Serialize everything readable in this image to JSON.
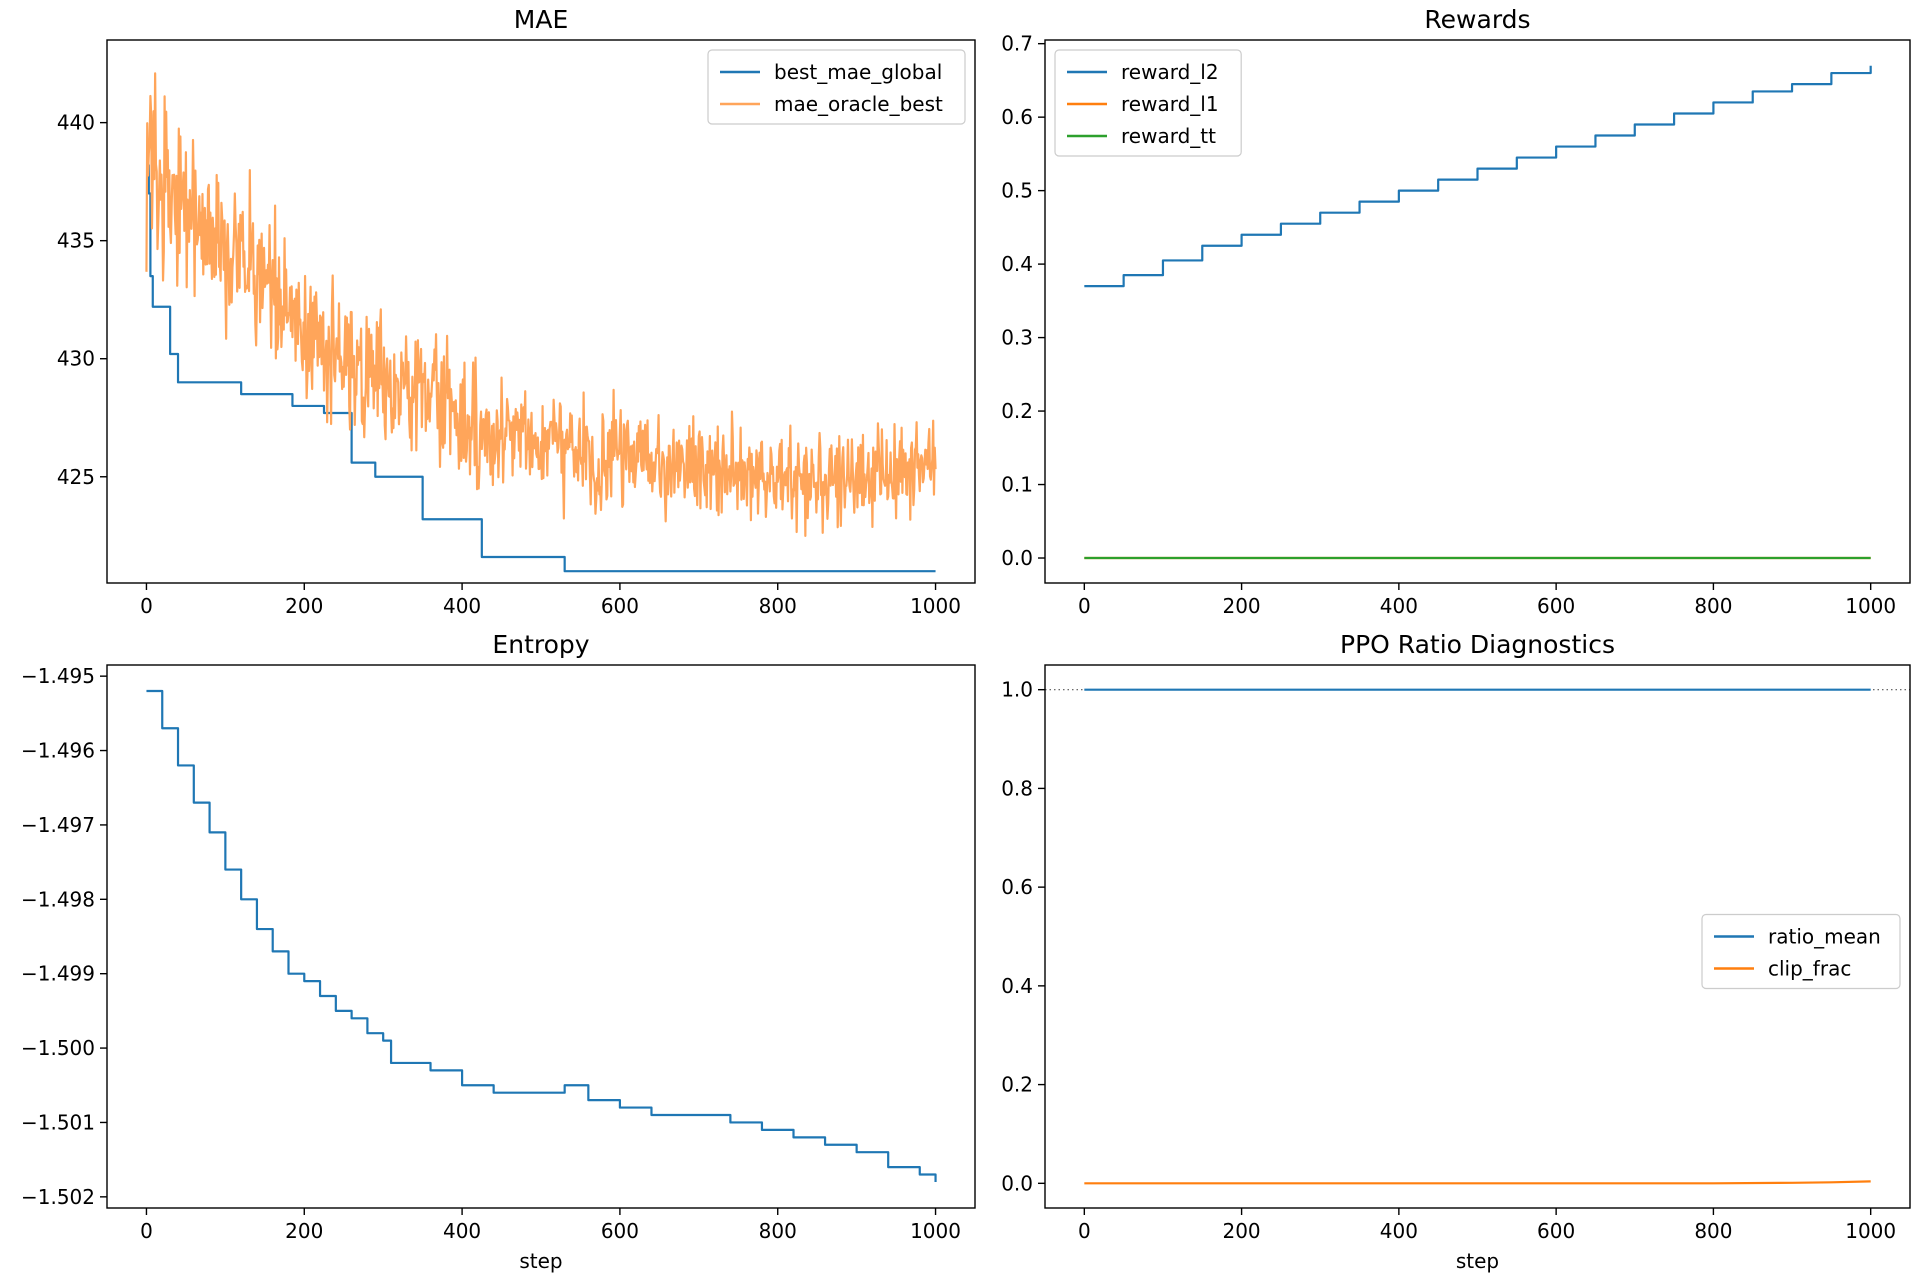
{
  "chart_data": [
    {
      "id": "mae",
      "type": "line",
      "title": "MAE",
      "xlabel": "",
      "ylabel": "",
      "xlim": [
        -50,
        1050
      ],
      "ylim": [
        420.5,
        443.5
      ],
      "xticks": [
        0,
        200,
        400,
        600,
        800,
        1000
      ],
      "yticks": [
        425,
        430,
        435,
        440
      ],
      "legend_position": "upper right",
      "grid": false,
      "series": [
        {
          "name": "best_mae_global",
          "color": "#1f77b4",
          "kind": "step",
          "x": [
            0,
            3,
            5,
            8,
            30,
            40,
            120,
            185,
            225,
            260,
            290,
            350,
            425,
            530,
            1000
          ],
          "y": [
            438.2,
            437.0,
            433.5,
            432.2,
            430.2,
            429.0,
            428.5,
            428.0,
            427.7,
            425.6,
            425.0,
            423.2,
            421.6,
            421.0,
            421.0
          ]
        },
        {
          "name": "mae_oracle_best",
          "color": "#ffa55a",
          "kind": "noisy",
          "x": [
            0,
            20,
            50,
            100,
            150,
            200,
            250,
            300,
            350,
            400,
            450,
            500,
            550,
            600,
            650,
            700,
            750,
            800,
            850,
            900,
            950,
            1000
          ],
          "y": [
            437.8,
            437.5,
            436.5,
            434.5,
            433.0,
            431.0,
            429.8,
            429.0,
            428.5,
            427.5,
            427.0,
            426.5,
            426.0,
            425.8,
            425.5,
            425.3,
            425.2,
            425.0,
            425.0,
            425.0,
            425.1,
            425.4
          ],
          "noise_amplitude": 1.8,
          "num_points": 1000
        }
      ]
    },
    {
      "id": "rewards",
      "type": "line",
      "title": "Rewards",
      "xlabel": "",
      "ylabel": "",
      "xlim": [
        -50,
        1050
      ],
      "ylim": [
        -0.034,
        0.705
      ],
      "xticks": [
        0,
        200,
        400,
        600,
        800,
        1000
      ],
      "yticks": [
        0.0,
        0.1,
        0.2,
        0.3,
        0.4,
        0.5,
        0.6,
        0.7
      ],
      "legend_position": "upper left",
      "grid": false,
      "series": [
        {
          "name": "reward_l2",
          "color": "#1f77b4",
          "kind": "step",
          "x": [
            0,
            50,
            100,
            150,
            200,
            250,
            300,
            350,
            400,
            450,
            500,
            550,
            600,
            650,
            700,
            750,
            800,
            850,
            900,
            950,
            1000
          ],
          "y": [
            0.37,
            0.385,
            0.405,
            0.425,
            0.44,
            0.455,
            0.47,
            0.485,
            0.5,
            0.515,
            0.53,
            0.545,
            0.56,
            0.575,
            0.59,
            0.605,
            0.62,
            0.635,
            0.645,
            0.66,
            0.67
          ]
        },
        {
          "name": "reward_l1",
          "color": "#ff7f0e",
          "kind": "line",
          "x": [
            0,
            1000
          ],
          "y": [
            0.0,
            0.0
          ]
        },
        {
          "name": "reward_tt",
          "color": "#2ca02c",
          "kind": "line",
          "x": [
            0,
            1000
          ],
          "y": [
            0.0,
            0.0
          ]
        }
      ]
    },
    {
      "id": "entropy",
      "type": "line",
      "title": "Entropy",
      "xlabel": "step",
      "ylabel": "",
      "xlim": [
        -50,
        1050
      ],
      "ylim": [
        -1.50215,
        -1.49485
      ],
      "xticks": [
        0,
        200,
        400,
        600,
        800,
        1000
      ],
      "yticks": [
        -1.502,
        -1.501,
        -1.5,
        -1.499,
        -1.498,
        -1.497,
        -1.496,
        -1.495
      ],
      "ytick_labels": [
        "−1.502",
        "−1.501",
        "−1.500",
        "−1.499",
        "−1.498",
        "−1.497",
        "−1.496",
        "−1.495"
      ],
      "legend_position": "none",
      "grid": false,
      "series": [
        {
          "name": "",
          "color": "#1f77b4",
          "kind": "step",
          "x": [
            0,
            20,
            40,
            60,
            80,
            100,
            120,
            140,
            160,
            180,
            200,
            220,
            240,
            260,
            280,
            300,
            310,
            360,
            400,
            440,
            480,
            530,
            560,
            600,
            640,
            700,
            740,
            780,
            820,
            860,
            900,
            940,
            980,
            1000
          ],
          "y": [
            -1.4952,
            -1.4957,
            -1.4962,
            -1.4967,
            -1.4971,
            -1.4976,
            -1.498,
            -1.4984,
            -1.4987,
            -1.499,
            -1.4991,
            -1.4993,
            -1.4995,
            -1.4996,
            -1.4998,
            -1.4999,
            -1.5002,
            -1.5003,
            -1.5005,
            -1.5006,
            -1.5006,
            -1.5005,
            -1.5007,
            -1.5008,
            -1.5009,
            -1.5009,
            -1.501,
            -1.5011,
            -1.5012,
            -1.5013,
            -1.5014,
            -1.5016,
            -1.5017,
            -1.5018
          ]
        }
      ]
    },
    {
      "id": "ppo",
      "type": "line",
      "title": "PPO Ratio Diagnostics",
      "xlabel": "step",
      "ylabel": "",
      "xlim": [
        -50,
        1050
      ],
      "ylim": [
        -0.05,
        1.05
      ],
      "xticks": [
        0,
        200,
        400,
        600,
        800,
        1000
      ],
      "yticks": [
        0.0,
        0.2,
        0.4,
        0.6,
        0.8,
        1.0
      ],
      "legend_position": "center right",
      "grid": false,
      "reference_line": {
        "y": 1.0,
        "color": "#555555",
        "style": "dotted"
      },
      "series": [
        {
          "name": "ratio_mean",
          "color": "#1f77b4",
          "kind": "line",
          "x": [
            0,
            1000
          ],
          "y": [
            1.0,
            1.0
          ]
        },
        {
          "name": "clip_frac",
          "color": "#ff7f0e",
          "kind": "line",
          "x": [
            0,
            800,
            900,
            950,
            1000
          ],
          "y": [
            0.0,
            0.0,
            0.001,
            0.002,
            0.004
          ]
        }
      ]
    }
  ]
}
